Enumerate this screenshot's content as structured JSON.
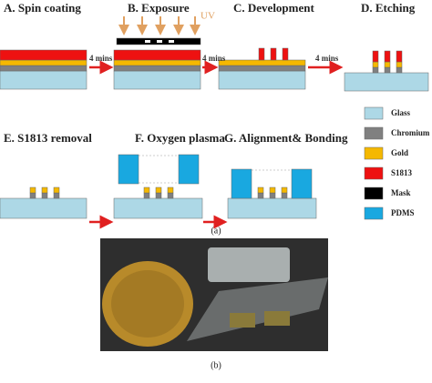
{
  "steps": [
    {
      "label": "A. Spin coating"
    },
    {
      "label": "B. Exposure"
    },
    {
      "label": "C. Development"
    },
    {
      "label": "D. Etching"
    },
    {
      "label": "E. S1813 removal"
    },
    {
      "label": "F. Oxygen plasma"
    },
    {
      "label": "G. Alignment& Bonding"
    }
  ],
  "uv": "UV",
  "duration": "4 mins",
  "legend": [
    "Glass",
    "Chromium",
    "Gold",
    "S1813",
    "Mask",
    "PDMS"
  ],
  "panels": [
    "(a)",
    "(b)"
  ]
}
